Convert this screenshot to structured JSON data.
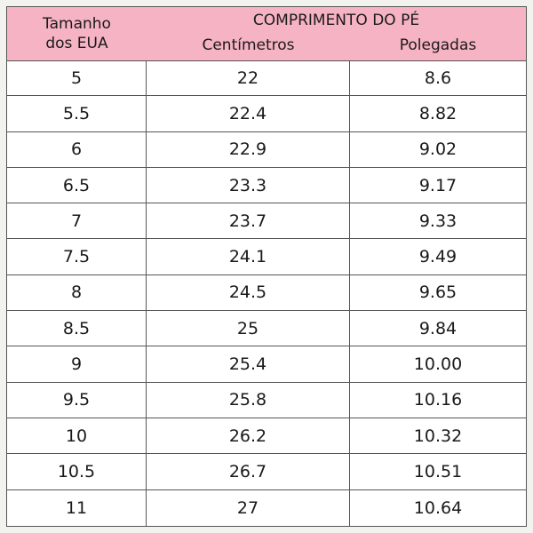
{
  "header": {
    "size_line1": "Tamanho",
    "size_line2": "dos EUA",
    "main": "COMPRIMENTO DO PÉ",
    "cm": "Centímetros",
    "in": "Polegadas"
  },
  "rows": [
    {
      "us": "5",
      "cm": "22",
      "in": "8.6"
    },
    {
      "us": "5.5",
      "cm": "22.4",
      "in": "8.82"
    },
    {
      "us": "6",
      "cm": "22.9",
      "in": "9.02"
    },
    {
      "us": "6.5",
      "cm": "23.3",
      "in": "9.17"
    },
    {
      "us": "7",
      "cm": "23.7",
      "in": "9.33"
    },
    {
      "us": "7.5",
      "cm": "24.1",
      "in": "9.49"
    },
    {
      "us": "8",
      "cm": "24.5",
      "in": "9.65"
    },
    {
      "us": "8.5",
      "cm": "25",
      "in": "9.84"
    },
    {
      "us": "9",
      "cm": "25.4",
      "in": "10.00"
    },
    {
      "us": "9.5",
      "cm": "25.8",
      "in": "10.16"
    },
    {
      "us": "10",
      "cm": "26.2",
      "in": "10.32"
    },
    {
      "us": "10.5",
      "cm": "26.7",
      "in": "10.51"
    },
    {
      "us": "11",
      "cm": "27",
      "in": "10.64"
    }
  ],
  "colors": {
    "header_bg": "#f6b3c3",
    "grid": "#555555",
    "text": "#1a1a1a"
  }
}
